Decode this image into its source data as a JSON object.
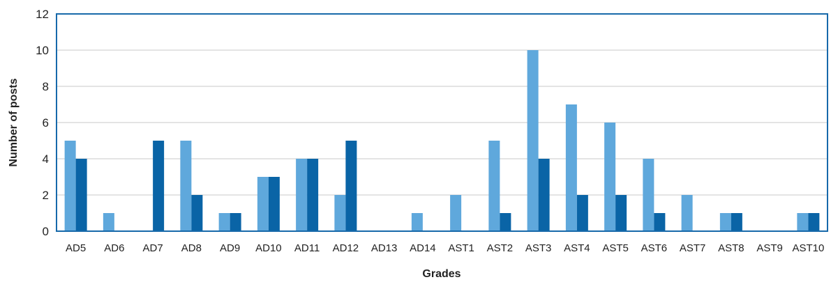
{
  "chart_data": {
    "type": "bar",
    "categories": [
      "AD5",
      "AD6",
      "AD7",
      "AD8",
      "AD9",
      "AD10",
      "AD11",
      "AD12",
      "AD13",
      "AD14",
      "AST1",
      "AST2",
      "AST3",
      "AST4",
      "AST5",
      "AST6",
      "AST7",
      "AST8",
      "AST9",
      "AST10"
    ],
    "series": [
      {
        "values": [
          5,
          1,
          0,
          5,
          1,
          3,
          4,
          2,
          0,
          1,
          2,
          5,
          10,
          7,
          6,
          4,
          2,
          1,
          0,
          1
        ],
        "color": "#5fa8dc"
      },
      {
        "values": [
          4,
          0,
          5,
          2,
          1,
          3,
          4,
          5,
          0,
          0,
          0,
          1,
          4,
          2,
          2,
          1,
          0,
          1,
          0,
          1
        ],
        "color": "#0a64a6"
      }
    ],
    "title": "",
    "xlabel": "Grades",
    "ylabel": "Number of posts",
    "ylim": [
      0,
      12
    ],
    "yticks": [
      0,
      2,
      4,
      6,
      8,
      10,
      12
    ],
    "grid": true,
    "legend": "none"
  }
}
